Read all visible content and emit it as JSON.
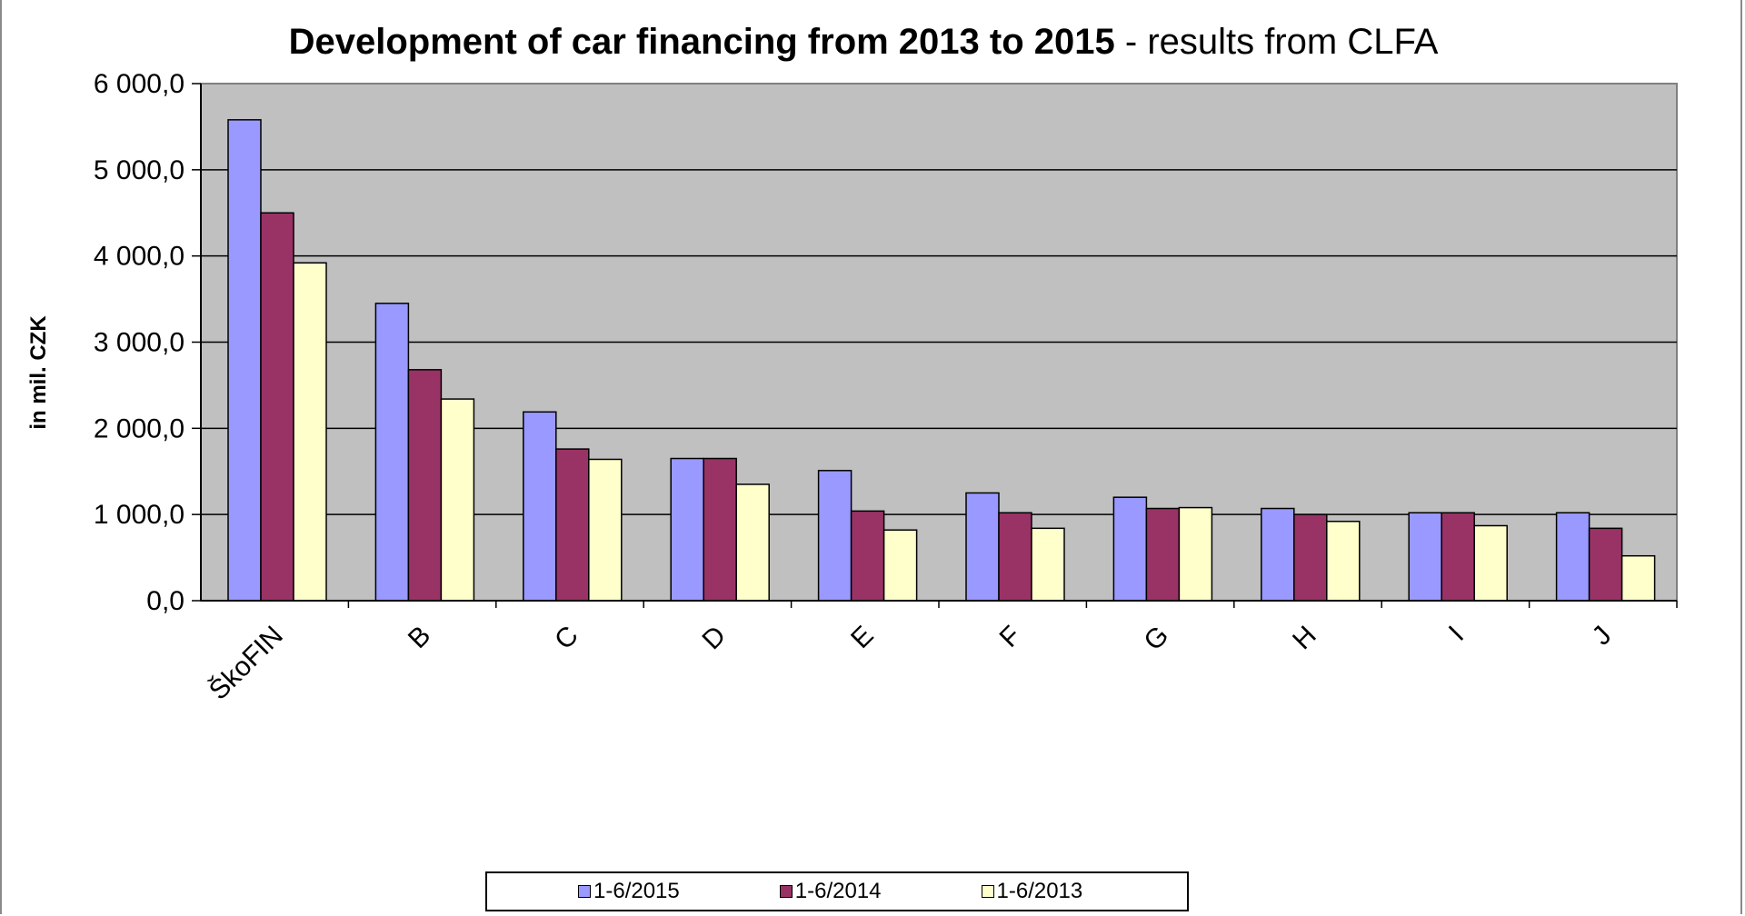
{
  "chart_data": {
    "type": "bar",
    "title_bold": "Development of car financing from 2013 to 2015",
    "title_rest": " - results from CLFA",
    "xlabel": "",
    "ylabel": "in mil. CZK",
    "ylim": [
      0,
      6000
    ],
    "yticks": [
      "0,0",
      "1 000,0",
      "2 000,0",
      "3 000,0",
      "4 000,0",
      "5 000,0",
      "6 000,0"
    ],
    "grid": true,
    "categories": [
      "ŠkoFIN",
      "B",
      "C",
      "D",
      "E",
      "F",
      "G",
      "H",
      "I",
      "J"
    ],
    "series": [
      {
        "name": "1-6/2015",
        "color": "#9999ff",
        "values": [
          5580,
          3450,
          2190,
          1650,
          1510,
          1250,
          1200,
          1070,
          1020,
          1020
        ]
      },
      {
        "name": "1-6/2014",
        "color": "#993366",
        "values": [
          4500,
          2680,
          1760,
          1650,
          1040,
          1020,
          1070,
          1000,
          1020,
          840
        ]
      },
      {
        "name": "1-6/2013",
        "color": "#ffffcc",
        "values": [
          3920,
          2340,
          1640,
          1350,
          820,
          840,
          1080,
          920,
          870,
          520
        ]
      }
    ],
    "legend_position": "bottom",
    "plot_background": "#c0c0c0"
  }
}
